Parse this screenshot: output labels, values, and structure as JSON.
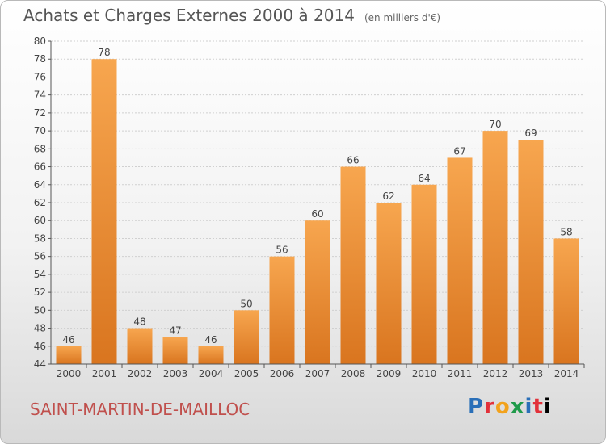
{
  "header": {
    "title": "Achats et Charges Externes 2000 à 2014",
    "unit": "(en milliers d'€)"
  },
  "footer": {
    "city": "SAINT-MARTIN-DE-MAILLOC",
    "logo": "Proxiti"
  },
  "colors": {
    "bar_light": "#f7a64f",
    "bar_dark": "#d9751f",
    "axis": "#555555",
    "grid": "#d0d0d0"
  },
  "chart_data": {
    "type": "bar",
    "title": "Achats et Charges Externes 2000 à 2014",
    "categories": [
      "2000",
      "2001",
      "2002",
      "2003",
      "2004",
      "2005",
      "2006",
      "2007",
      "2008",
      "2009",
      "2010",
      "2011",
      "2012",
      "2013",
      "2014"
    ],
    "values": [
      46,
      78,
      48,
      47,
      46,
      50,
      56,
      60,
      66,
      62,
      64,
      67,
      70,
      69,
      58
    ],
    "ylim": [
      44,
      80
    ],
    "yticks": [
      44,
      46,
      48,
      50,
      52,
      54,
      56,
      58,
      60,
      62,
      64,
      66,
      68,
      70,
      72,
      74,
      76,
      78,
      80
    ],
    "grid": true,
    "data_labels": true
  }
}
